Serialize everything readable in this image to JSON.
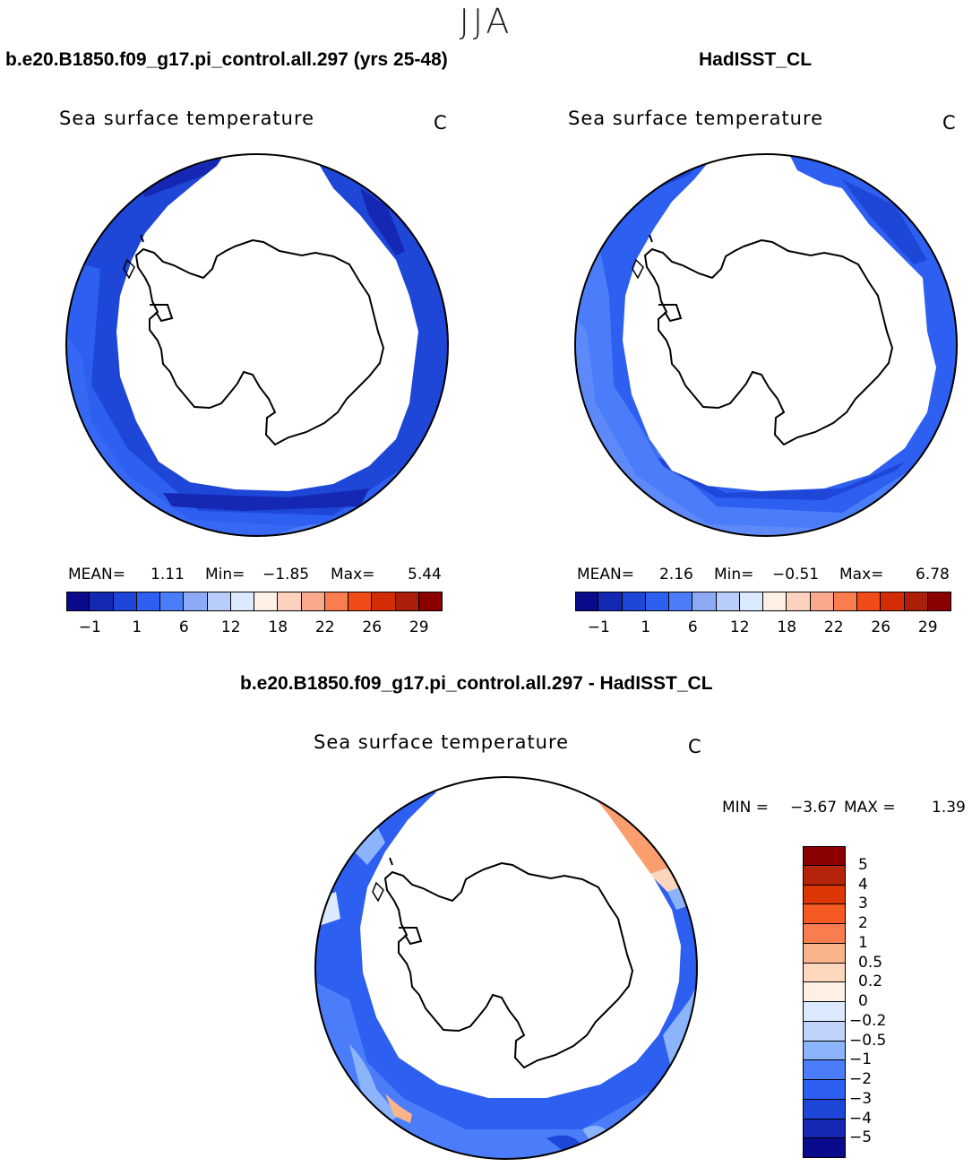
{
  "season": "JJA",
  "panels": [
    {
      "title": "b.e20.B1850.f09_g17.pi_control.all.297 (yrs 25-48)",
      "variable": "Sea surface temperature",
      "units": "C",
      "stats": {
        "mean_label": "MEAN=",
        "mean": "1.11",
        "min_label": "Min=",
        "min": "−1.85",
        "max_label": "Max=",
        "max": "5.44"
      }
    },
    {
      "title": "HadISST_CL",
      "variable": "Sea surface temperature",
      "units": "C",
      "stats": {
        "mean_label": "MEAN=",
        "mean": "2.16",
        "min_label": "Min=",
        "min": "−0.51",
        "max_label": "Max=",
        "max": "6.78"
      }
    }
  ],
  "diff_panel": {
    "title": "b.e20.B1850.f09_g17.pi_control.all.297 - HadISST_CL",
    "variable": "Sea surface temperature",
    "units": "C",
    "stats": {
      "min_label": "MIN =",
      "min": "−3.67",
      "max_label": "MAX =",
      "max": "1.39"
    }
  },
  "field_colorbar": {
    "colors": [
      "#0a0a8c",
      "#1428b4",
      "#1e46d7",
      "#2d5ff0",
      "#4b7dfa",
      "#8caaf5",
      "#b9cdfa",
      "#dceaff",
      "#fff0e6",
      "#fcd2be",
      "#faaa8c",
      "#fa7d50",
      "#f04b19",
      "#d22d05",
      "#aa1e0a",
      "#8b0000"
    ],
    "labels": [
      "−1",
      "1",
      "6",
      "12",
      "18",
      "22",
      "26",
      "29"
    ]
  },
  "diff_colorbar": {
    "colors": [
      "#8b0000",
      "#b4230a",
      "#dc3705",
      "#f55a23",
      "#fa7d50",
      "#fab48c",
      "#fcd7be",
      "#fff0e6",
      "#dceaff",
      "#bed2fa",
      "#8cb4fa",
      "#4b7dfa",
      "#2d5ff0",
      "#1e46d7",
      "#1428b4",
      "#0a0a8c"
    ],
    "labels": [
      "5",
      "4",
      "3",
      "2",
      "1",
      "0.5",
      "0.2",
      "0",
      "−0.2",
      "−0.5",
      "−1",
      "−2",
      "−3",
      "−4",
      "−5"
    ]
  },
  "colors": {
    "land": "#ffffff",
    "coast": "#000000",
    "ocean_deep": "#1e46d7",
    "ocean_mid": "#2d5ff0",
    "ocean_light": "#4b7dfa",
    "warm_anomaly": "#fa9e6e"
  }
}
